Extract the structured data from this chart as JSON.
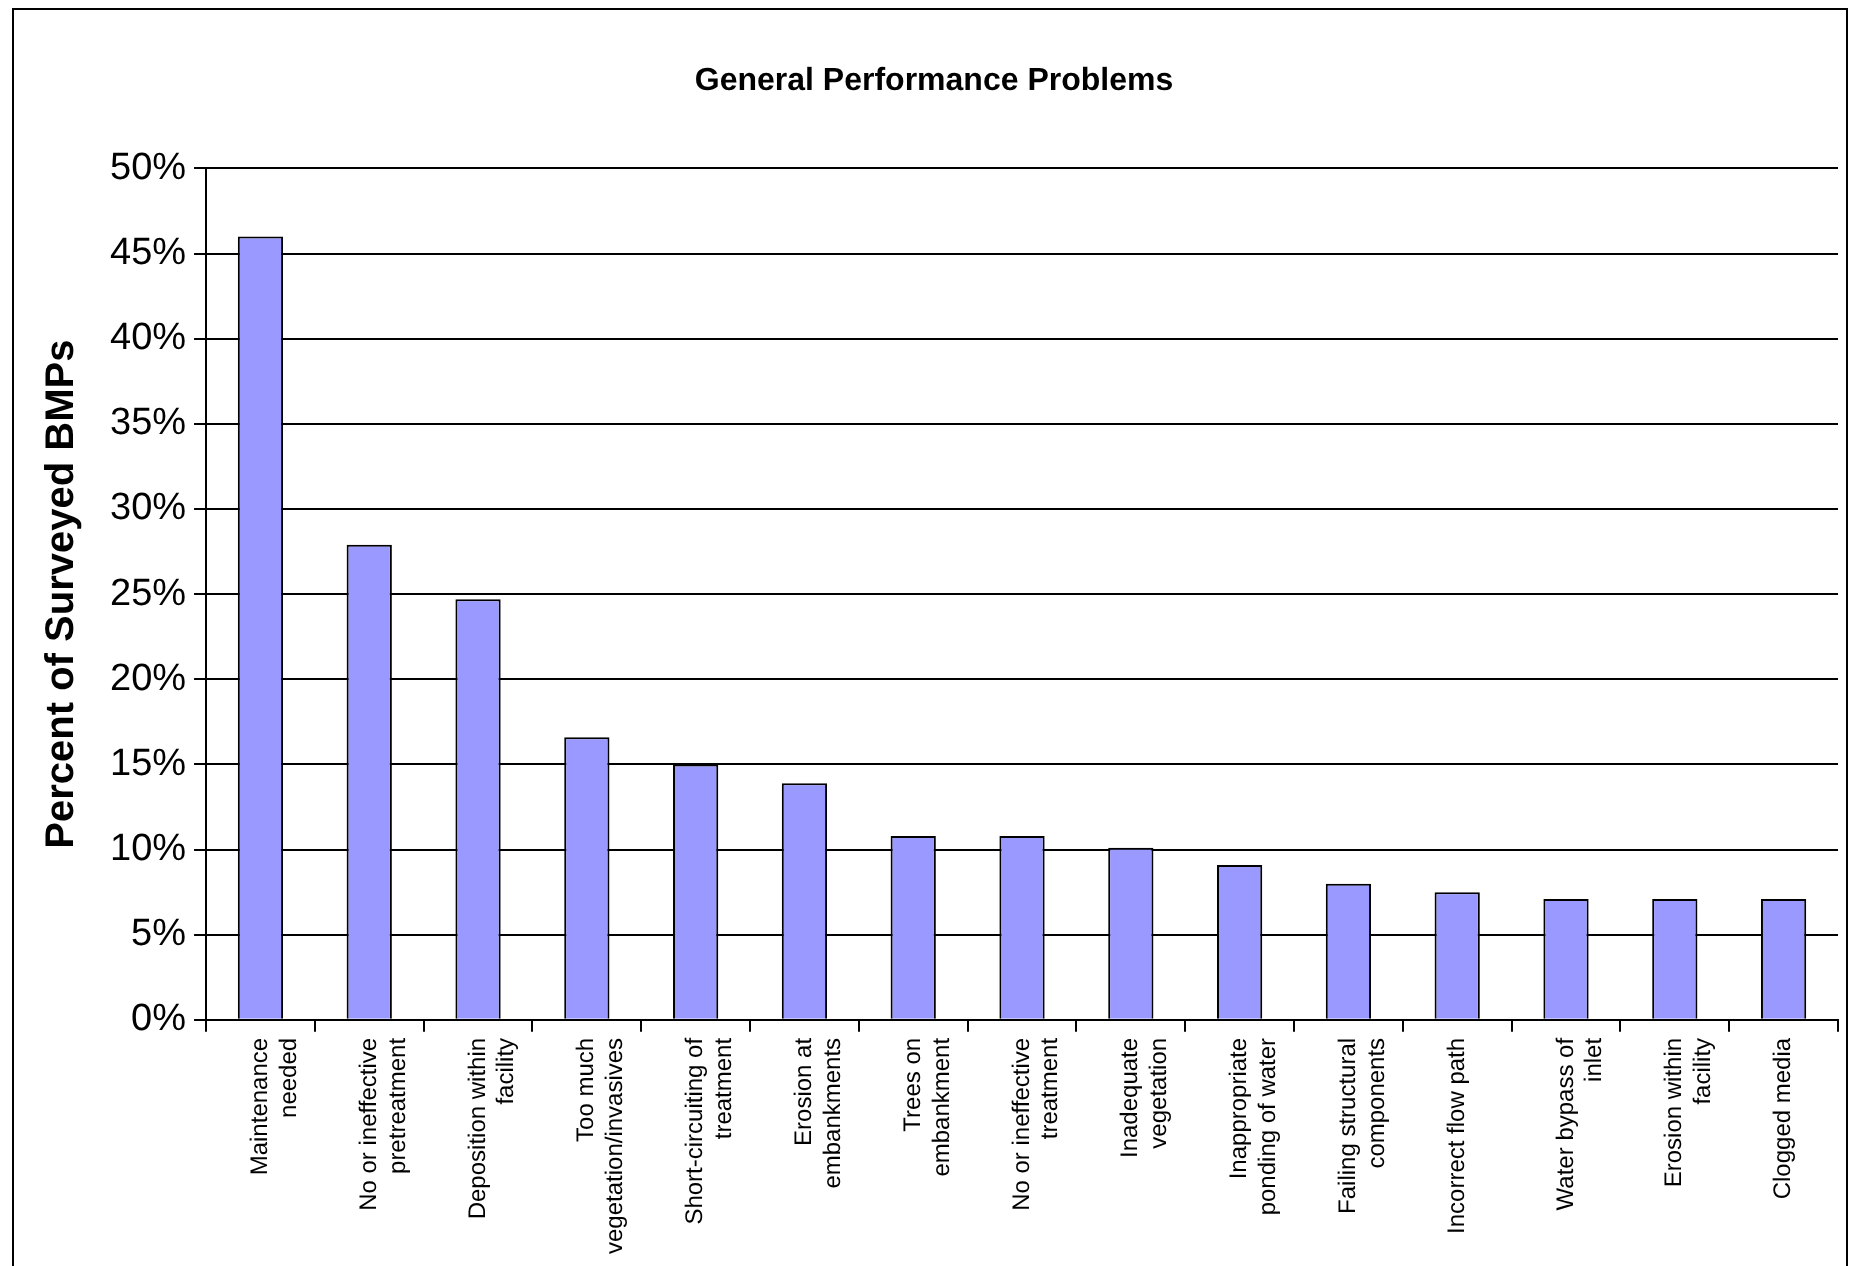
{
  "chart_data": {
    "type": "bar",
    "title": "General Performance Problems",
    "ylabel": "Percent of Surveyed BMPs",
    "categories": [
      "Maintenance needed",
      "No or ineffective pretreatment",
      "Deposition within facility",
      "Too much vegetation/invasives",
      "Short-circuiting of treatment",
      "Erosion at embankments",
      "Trees on embankment",
      "No or ineffective treatment",
      "Inadequate vegetation",
      "Inappropriate ponding of water",
      "Failing structural components",
      "Incorrect flow path",
      "Water bypass of inlet",
      "Erosion within facility",
      "Clogged media"
    ],
    "values": [
      46,
      27.9,
      24.7,
      16.6,
      15,
      13.9,
      10.8,
      10.8,
      10.1,
      9.1,
      8,
      7.5,
      7.1,
      7.1,
      7.1
    ],
    "color": "#9999ff",
    "ylim": [
      0,
      50
    ],
    "yticks": [
      {
        "value": 0,
        "label": "0%"
      },
      {
        "value": 5,
        "label": "5%"
      },
      {
        "value": 10,
        "label": "10%"
      },
      {
        "value": 15,
        "label": "15%"
      },
      {
        "value": 20,
        "label": "20%"
      },
      {
        "value": 25,
        "label": "25%"
      },
      {
        "value": 30,
        "label": "30%"
      },
      {
        "value": 35,
        "label": "35%"
      },
      {
        "value": 40,
        "label": "40%"
      },
      {
        "value": 45,
        "label": "45%"
      },
      {
        "value": 50,
        "label": "50%"
      }
    ],
    "grid": "y",
    "legend": false
  }
}
